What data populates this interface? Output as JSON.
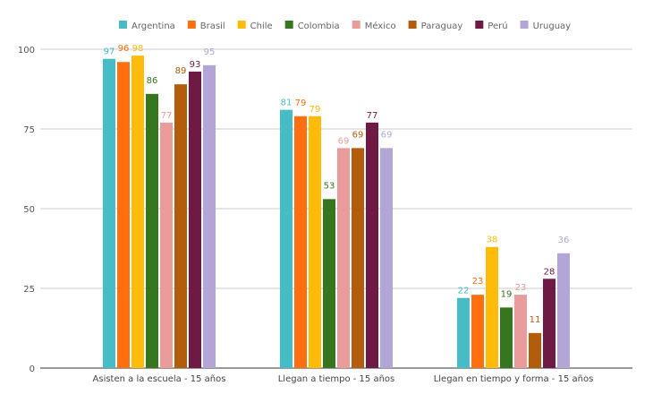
{
  "chart_data": {
    "type": "bar",
    "categories": [
      "Asisten a la escuela - 15 años",
      "Llegan a tiempo - 15 años",
      "Llegan en tiempo y forma - 15 años"
    ],
    "series": [
      {
        "name": "Argentina",
        "color": "#45bcc6",
        "values": [
          97,
          81,
          22
        ]
      },
      {
        "name": "Brasil",
        "color": "#ff6f0f",
        "values": [
          96,
          79,
          23
        ]
      },
      {
        "name": "Chile",
        "color": "#ffbb0a",
        "values": [
          98,
          79,
          38
        ]
      },
      {
        "name": "Colombia",
        "color": "#35761f",
        "values": [
          86,
          53,
          19
        ]
      },
      {
        "name": "México",
        "color": "#ea9b9b",
        "values": [
          77,
          69,
          23
        ]
      },
      {
        "name": "Paraguay",
        "color": "#b35c0c",
        "values": [
          89,
          69,
          11
        ]
      },
      {
        "name": "Perú",
        "color": "#6e1a45",
        "values": [
          93,
          77,
          28
        ]
      },
      {
        "name": "Uruguay",
        "color": "#b3a6d6",
        "values": [
          95,
          69,
          36
        ]
      }
    ],
    "yticks": [
      0,
      25,
      50,
      75,
      100
    ],
    "ylim": [
      0,
      100
    ],
    "grid": true,
    "legend": "top",
    "data_labels": true
  }
}
